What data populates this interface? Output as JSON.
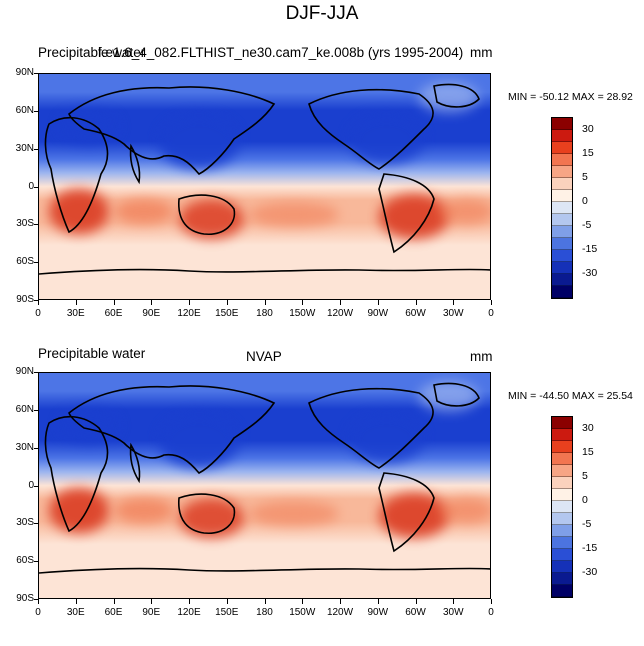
{
  "title": "DJF-JJA",
  "panels": [
    {
      "left_title": "Precipitable water",
      "overlap_title": "f.e1.6_4_082.FLTHIST_ne30.cam7_ke.008b (yrs 1995-2004)",
      "center_title": "",
      "units": "mm",
      "minmax": "MIN = -50.12 MAX =  28.92"
    },
    {
      "left_title": "Precipitable water",
      "overlap_title": "",
      "center_title": "NVAP",
      "units": "mm",
      "minmax": "MIN = -44.50 MAX =  25.54"
    }
  ],
  "lat_labels": [
    "90N",
    "60N",
    "30N",
    "0",
    "30S",
    "60S",
    "90S"
  ],
  "lon_labels": [
    "0",
    "30E",
    "60E",
    "90E",
    "120E",
    "150E",
    "180",
    "150W",
    "120W",
    "90W",
    "60W",
    "30W",
    "0"
  ],
  "colorbar": {
    "labels": [
      "30",
      "15",
      "5",
      "0",
      "-5",
      "-15",
      "-30"
    ],
    "colors": [
      "#8b0000",
      "#cc1a10",
      "#e8401e",
      "#f27550",
      "#f7a585",
      "#fbd2bd",
      "#fff2e6",
      "#dde6f5",
      "#b3c7ef",
      "#7f9fe8",
      "#4c74e0",
      "#2a4fd6",
      "#1531b8",
      "#0a1a90",
      "#000066"
    ]
  },
  "map_colors": {
    "strong_blue": "#1a3fcf",
    "mid_blue": "#4d75e6",
    "light_blue": "#9db5ef",
    "pale": "#fde4d6",
    "light_orange": "#f8b89a",
    "orange": "#f07a52",
    "red": "#d9351c",
    "land_line": "#000000"
  }
}
